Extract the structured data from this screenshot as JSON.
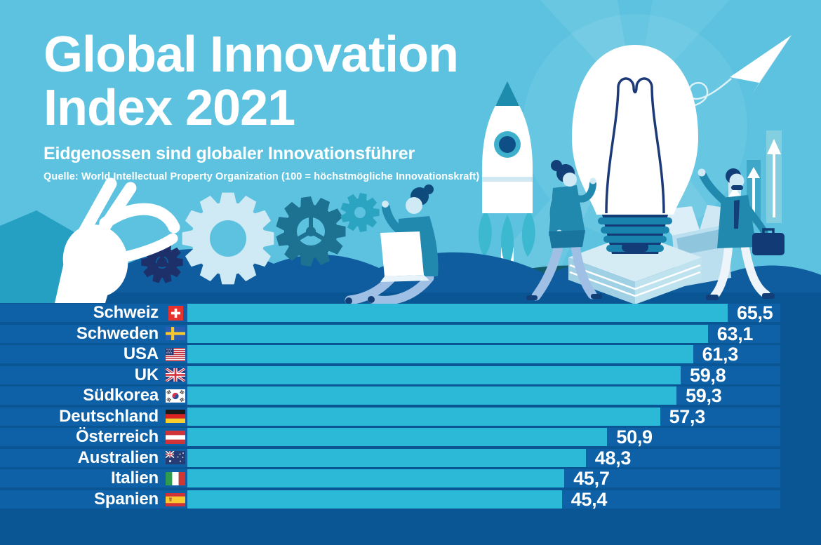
{
  "header": {
    "title_line1": "Global Innovation",
    "title_line2": "Index 2021",
    "subtitle": "Eidgenossen sind globaler Innovationsführer",
    "source": "Quelle: World Intellectual Property Organization (100 = höchstmögliche Innovationskraft)"
  },
  "chart_data": {
    "type": "bar",
    "orientation": "horizontal",
    "title": "Global Innovation Index 2021",
    "subtitle": "Eidgenossen sind globaler Innovationsführer",
    "source": "Quelle: World Intellectual Property Organization",
    "scale_note": "100 = höchstmögliche Innovationskraft",
    "xlim": [
      0,
      100
    ],
    "grid": false,
    "legend": false,
    "categories": [
      "Schweiz",
      "Schweden",
      "USA",
      "UK",
      "Südkorea",
      "Deutschland",
      "Österreich",
      "Australien",
      "Italien",
      "Spanien"
    ],
    "values": [
      65.5,
      63.1,
      61.3,
      59.8,
      59.3,
      57.3,
      50.9,
      48.3,
      45.7,
      45.4
    ],
    "rows": [
      {
        "country": "Schweiz",
        "flag": "ch",
        "value": 65.5,
        "label": "65,5"
      },
      {
        "country": "Schweden",
        "flag": "se",
        "value": 63.1,
        "label": "63,1"
      },
      {
        "country": "USA",
        "flag": "us",
        "value": 61.3,
        "label": "61,3"
      },
      {
        "country": "UK",
        "flag": "uk",
        "value": 59.8,
        "label": "59,8"
      },
      {
        "country": "Südkorea",
        "flag": "kr",
        "value": 59.3,
        "label": "59,3"
      },
      {
        "country": "Deutschland",
        "flag": "de",
        "value": 57.3,
        "label": "57,3"
      },
      {
        "country": "Österreich",
        "flag": "at",
        "value": 50.9,
        "label": "50,9"
      },
      {
        "country": "Australien",
        "flag": "au",
        "value": 48.3,
        "label": "48,3"
      },
      {
        "country": "Italien",
        "flag": "it",
        "value": 45.7,
        "label": "45,7"
      },
      {
        "country": "Spanien",
        "flag": "es",
        "value": 45.4,
        "label": "45,4"
      }
    ]
  },
  "colors": {
    "sky": "#5cc2df",
    "panel": "#0a5594",
    "row_stripe": "#0e61a6",
    "bar": "#2cb9d8",
    "wave": "#0f5c9e",
    "hill_teal": "#155c6b",
    "navy": "#123f77",
    "teal_figure": "#2188ae",
    "text": "#ffffff"
  },
  "illustration": {
    "elements": [
      "hand-icon",
      "gears-icon",
      "rocket-icon",
      "person-laptop",
      "person-walking",
      "lightbulb-icon",
      "book-stack",
      "open-box",
      "person-waving",
      "growth-bars-icon",
      "paper-plane-icon",
      "smoke-clouds",
      "hills"
    ]
  }
}
